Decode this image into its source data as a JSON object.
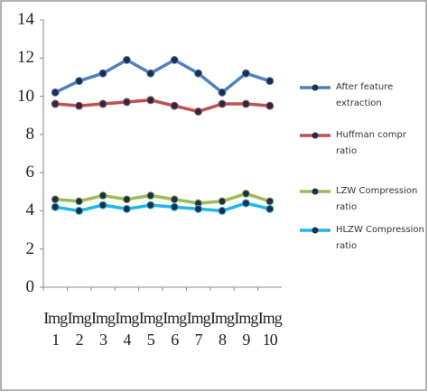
{
  "chart_data": {
    "type": "line",
    "categories": [
      "Img 1",
      "Img 2",
      "Img 3",
      "Img 4",
      "Img 5",
      "Img 6",
      "Img 7",
      "Img 8",
      "Img 9",
      "Img 10"
    ],
    "series": [
      {
        "name": "After feature extraction",
        "color": "#4f81bd",
        "values": [
          10.2,
          10.8,
          11.2,
          11.9,
          11.2,
          11.9,
          11.2,
          10.2,
          11.2,
          10.8
        ]
      },
      {
        "name": "Huffman compr ratio",
        "color": "#c0504d",
        "values": [
          9.6,
          9.5,
          9.6,
          9.7,
          9.8,
          9.5,
          9.2,
          9.6,
          9.6,
          9.5
        ]
      },
      {
        "name": "LZW Compression ratio",
        "color": "#9bbb59",
        "values": [
          4.6,
          4.5,
          4.8,
          4.6,
          4.8,
          4.6,
          4.4,
          4.5,
          4.9,
          4.5
        ]
      },
      {
        "name": "HLZW Compression ratio",
        "color": "#1fb7e8",
        "values": [
          4.2,
          4.0,
          4.3,
          4.1,
          4.3,
          4.2,
          4.1,
          4.0,
          4.4,
          4.1
        ]
      }
    ],
    "ylim": [
      0,
      14
    ],
    "yticks": [
      0,
      2,
      4,
      6,
      8,
      10,
      12,
      14
    ],
    "legend": "right"
  }
}
